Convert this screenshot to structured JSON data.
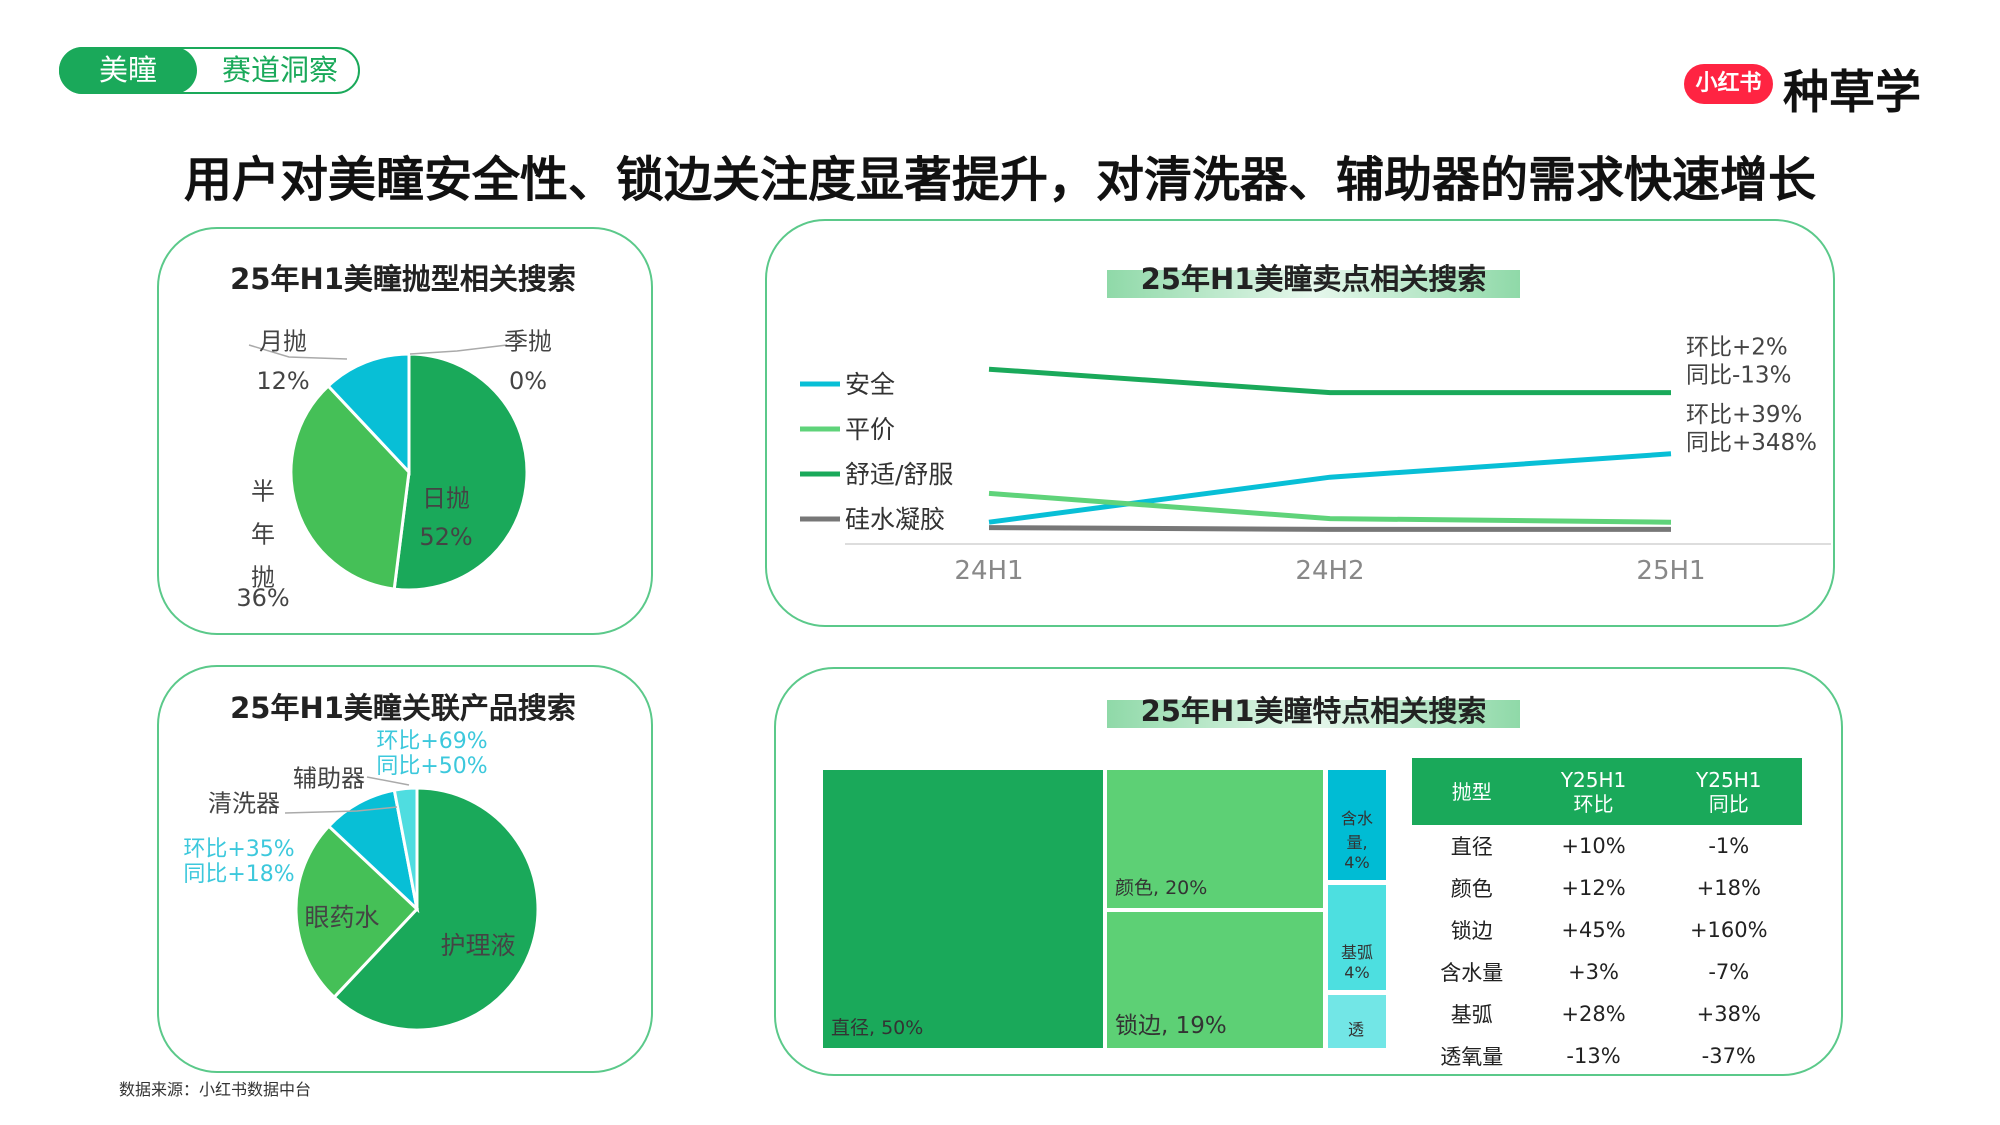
{
  "header": {
    "tag_primary": "美瞳",
    "tag_secondary": "赛道洞察",
    "logo_badge": "小红书",
    "logo_text": "种草学",
    "title": "用户对美瞳安全性、锁边关注度显著提升，对清洗器、辅助器的需求快速增长"
  },
  "colors": {
    "dark_green": "#1aa95a",
    "light_green": "#45c057",
    "cyan": "#08bfd6",
    "light_cyan": "#4fdde0",
    "gray": "#777777",
    "brand_red": "#ff2442"
  },
  "source": "数据来源：小红书数据中台",
  "chart_data": [
    {
      "type": "pie",
      "title": "25年H1美瞳抛型相关搜索",
      "slices": [
        {
          "name": "日抛",
          "value": 52,
          "label": "52%",
          "color": "#1aa95a"
        },
        {
          "name": "半年抛",
          "value": 36,
          "label": "36%",
          "color": "#45c057"
        },
        {
          "name": "月抛",
          "value": 12,
          "label": "12%",
          "color": "#08bfd6"
        },
        {
          "name": "季抛",
          "value": 0,
          "label": "0%",
          "color": "#4fdde0"
        }
      ]
    },
    {
      "type": "line",
      "title": "25年H1美瞳卖点相关搜索",
      "x": [
        "24H1",
        "24H2",
        "25H1"
      ],
      "legend": "left",
      "series": [
        {
          "name": "安全",
          "color": "#08bfd6",
          "values": [
            11,
            36,
            49
          ]
        },
        {
          "name": "平价",
          "color": "#5fd37a",
          "values": [
            27,
            13,
            11
          ]
        },
        {
          "name": "舒适/舒服",
          "color": "#1aa95a",
          "values": [
            96,
            83,
            83
          ]
        },
        {
          "name": "硅水凝胶",
          "color": "#777777",
          "values": [
            8,
            7,
            7
          ]
        }
      ],
      "annotations": [
        {
          "series": "舒适/舒服",
          "lines": [
            "环比+2%",
            "同比-13%"
          ]
        },
        {
          "series": "安全",
          "lines": [
            "环比+39%",
            "同比+348%"
          ]
        }
      ],
      "ylim": [
        0,
        100
      ]
    },
    {
      "type": "pie",
      "title": "25年H1美瞳关联产品搜索",
      "slices": [
        {
          "name": "护理液",
          "value": 62,
          "color": "#1aa95a"
        },
        {
          "name": "眼药水",
          "value": 25,
          "color": "#45c057"
        },
        {
          "name": "清洗器",
          "value": 10,
          "color": "#08bfd6",
          "annotation": [
            "环比+35%",
            "同比+18%"
          ]
        },
        {
          "name": "辅助器",
          "value": 3,
          "color": "#4fdde0",
          "annotation": [
            "环比+69%",
            "同比+50%"
          ]
        }
      ]
    },
    {
      "type": "treemap",
      "title": "25年H1美瞳特点相关搜索",
      "items": [
        {
          "name": "直径",
          "label": "直径, 50%",
          "value": 50,
          "color": "#1aa95a"
        },
        {
          "name": "颜色",
          "label": "颜色, 20%",
          "value": 20,
          "color": "#5dd075"
        },
        {
          "name": "锁边",
          "label": "锁边, 19%",
          "value": 19,
          "color": "#5dd075"
        },
        {
          "name": "含水量",
          "label": "含水量, 4%",
          "value": 4,
          "color": "#00bcd4"
        },
        {
          "name": "基弧",
          "label": "基弧 4%",
          "value": 4,
          "color": "#4ddfe0"
        },
        {
          "name": "透氧量",
          "label": "透",
          "color": "#72e6e6"
        }
      ]
    },
    {
      "type": "table",
      "columns": [
        "抛型",
        "Y25H1 环比",
        "Y25H1 同比"
      ],
      "rows": [
        [
          "直径",
          "+10%",
          "-1%"
        ],
        [
          "颜色",
          "+12%",
          "+18%"
        ],
        [
          "锁边",
          "+45%",
          "+160%"
        ],
        [
          "含水量",
          "+3%",
          "-7%"
        ],
        [
          "基弧",
          "+28%",
          "+38%"
        ],
        [
          "透氧量",
          "-13%",
          "-37%"
        ]
      ]
    }
  ]
}
